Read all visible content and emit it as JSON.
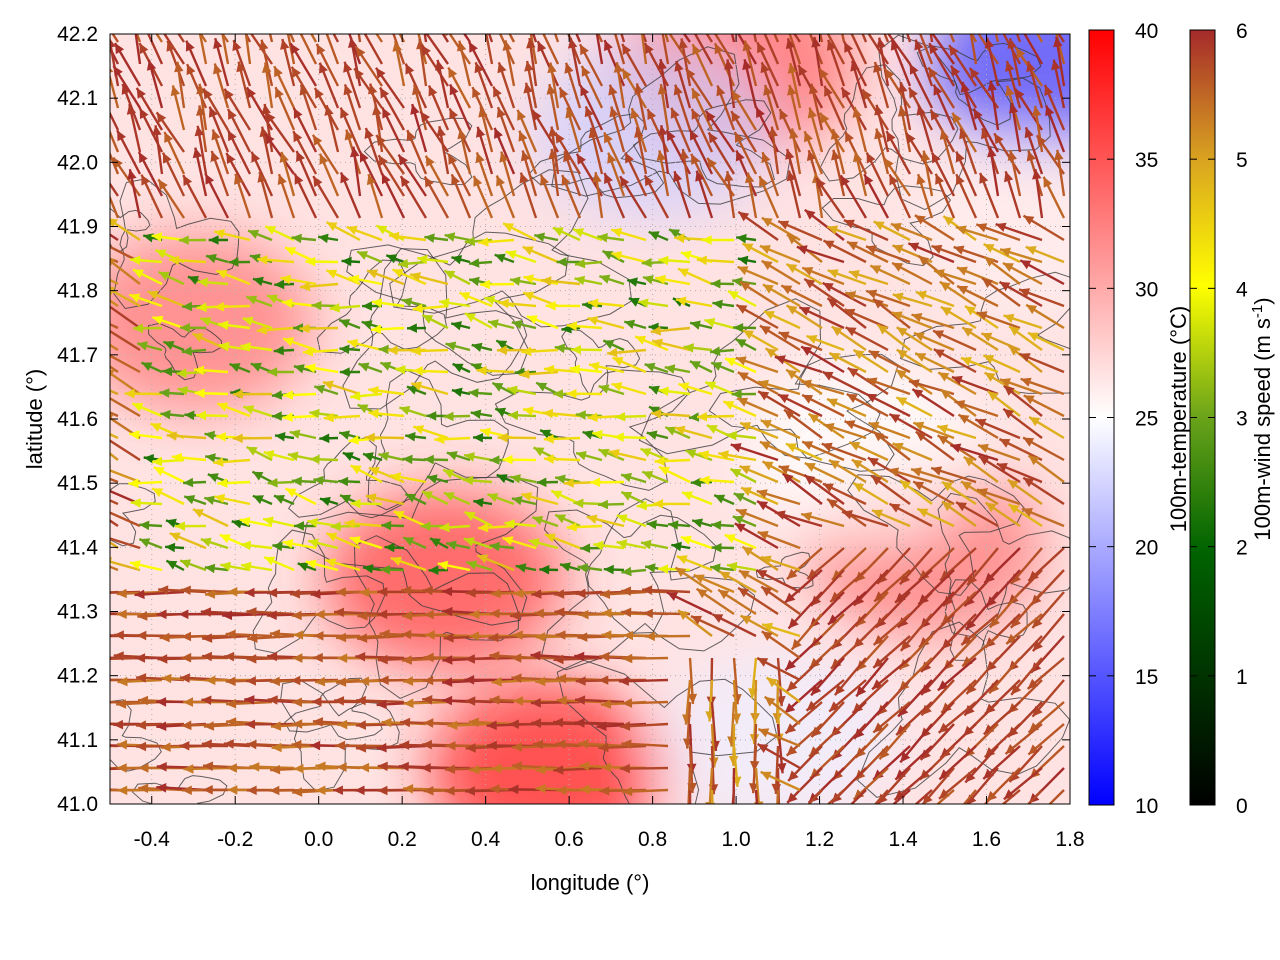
{
  "chart_data": {
    "type": "heatmap",
    "title": "",
    "xlabel": "longitude (°)",
    "ylabel": "latitude (°)",
    "xlim": [
      -0.5,
      1.8
    ],
    "ylim": [
      41.0,
      42.2
    ],
    "x_ticks": [
      -0.4,
      -0.2,
      0.0,
      0.2,
      0.4,
      0.6,
      0.8,
      1.0,
      1.2,
      1.4,
      1.6,
      1.8
    ],
    "x_tick_labels": [
      "-0.4",
      "-0.2",
      "0.0",
      "0.2",
      "0.4",
      "0.6",
      "0.8",
      "1.0",
      "1.2",
      "1.4",
      "1.6",
      "1.8"
    ],
    "y_ticks": [
      41.0,
      41.1,
      41.2,
      41.3,
      41.4,
      41.5,
      41.6,
      41.7,
      41.8,
      41.9,
      42.0,
      42.1,
      42.2
    ],
    "y_tick_labels": [
      "41.0",
      "41.1",
      "41.2",
      "41.3",
      "41.4",
      "41.5",
      "41.6",
      "41.7",
      "41.8",
      "41.9",
      "42.0",
      "42.1",
      "42.2"
    ],
    "grid": true,
    "colorbars": [
      {
        "label": "100m-temperature (°C)",
        "range": [
          10,
          40
        ],
        "ticks": [
          10,
          15,
          20,
          25,
          30,
          35,
          40
        ],
        "tick_labels": [
          "10",
          "15",
          "20",
          "25",
          "30",
          "35",
          "40"
        ],
        "colors": [
          "#0000ff",
          "#ffffff",
          "#ff0000"
        ]
      },
      {
        "label_main": "100m-wind speed (m s",
        "label_sup": "-1",
        "label_end": ")",
        "range": [
          0,
          6
        ],
        "ticks": [
          0,
          1,
          2,
          3,
          4,
          5,
          6
        ],
        "tick_labels": [
          "0",
          "1",
          "2",
          "3",
          "4",
          "5",
          "6"
        ],
        "colors": [
          "#000000",
          "#006400",
          "#6aa31a",
          "#ffff00",
          "#daa520",
          "#a52a2a"
        ]
      }
    ],
    "temperature_field_regions": [
      {
        "lon": 0.55,
        "lat": 41.05,
        "temp": 38
      },
      {
        "lon": 0.3,
        "lat": 41.35,
        "temp": 36
      },
      {
        "lon": 1.0,
        "lat": 42.15,
        "temp": 34
      },
      {
        "lon": -0.3,
        "lat": 41.75,
        "temp": 33
      },
      {
        "lon": 1.45,
        "lat": 41.4,
        "temp": 33
      },
      {
        "lon": 1.1,
        "lat": 41.1,
        "temp": 24
      },
      {
        "lon": 1.3,
        "lat": 41.55,
        "temp": 25
      },
      {
        "lon": 1.75,
        "lat": 42.15,
        "temp": 14
      },
      {
        "lon": 0.8,
        "lat": 42.05,
        "temp": 22
      },
      {
        "lon": 1.7,
        "lat": 41.9,
        "temp": 26
      }
    ],
    "wind_field": {
      "speed_range": [
        0,
        6
      ],
      "note": "arrow vectors of 100m wind, colored by speed"
    }
  }
}
